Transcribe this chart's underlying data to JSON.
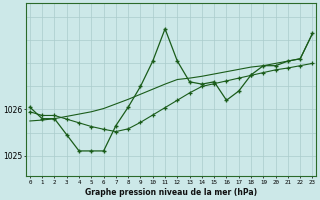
{
  "bg_color": "#cce8e8",
  "grid_color": "#aacccc",
  "line_color": "#1a5c1a",
  "title": "Graphe pression niveau de la mer (hPa)",
  "ylabel_ticks": [
    1025,
    1026
  ],
  "ylim": [
    1024.55,
    1028.3
  ],
  "xlim": [
    -0.3,
    23.3
  ],
  "line1_x": [
    0,
    1,
    2,
    3,
    4,
    5,
    6,
    7,
    8,
    9,
    10,
    11,
    12,
    13,
    14,
    15,
    16,
    17,
    18,
    19,
    20,
    21,
    22,
    23
  ],
  "line1_y": [
    1026.05,
    1025.8,
    1025.8,
    1025.45,
    1025.1,
    1025.1,
    1025.1,
    1025.65,
    1026.05,
    1026.5,
    1027.05,
    1027.75,
    1027.05,
    1026.6,
    1026.55,
    1026.6,
    1026.2,
    1026.4,
    1026.75,
    1026.95,
    1026.95,
    1027.05,
    1027.1,
    1027.65
  ],
  "line2_x": [
    0,
    1,
    2,
    3,
    4,
    5,
    6,
    7,
    8,
    9,
    10,
    11,
    12,
    13,
    14,
    15,
    16,
    17,
    18,
    19,
    20,
    21,
    22,
    23
  ],
  "line2_y": [
    1025.95,
    1025.87,
    1025.87,
    1025.79,
    1025.71,
    1025.63,
    1025.57,
    1025.52,
    1025.58,
    1025.72,
    1025.88,
    1026.04,
    1026.2,
    1026.36,
    1026.5,
    1026.56,
    1026.62,
    1026.68,
    1026.74,
    1026.8,
    1026.86,
    1026.9,
    1026.95,
    1027.0
  ],
  "line3_x": [
    0,
    1,
    2,
    3,
    4,
    5,
    6,
    7,
    8,
    9,
    10,
    11,
    12,
    13,
    14,
    15,
    16,
    17,
    18,
    19,
    20,
    21,
    22,
    23
  ],
  "line3_y": [
    1025.75,
    1025.77,
    1025.8,
    1025.85,
    1025.9,
    1025.95,
    1026.02,
    1026.12,
    1026.22,
    1026.33,
    1026.44,
    1026.55,
    1026.65,
    1026.68,
    1026.72,
    1026.77,
    1026.82,
    1026.87,
    1026.92,
    1026.95,
    1027.0,
    1027.05,
    1027.1,
    1027.65
  ]
}
